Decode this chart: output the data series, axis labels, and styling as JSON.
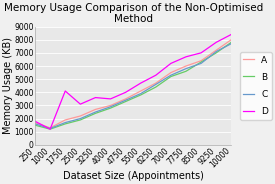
{
  "title": "Memory Usage Comparison of the Non-Optimised\nMethod",
  "xlabel": "Dataset Size (Appointments)",
  "ylabel": "Memory Usage (KB)",
  "xlim": [
    250,
    10000
  ],
  "ylim": [
    0,
    9000
  ],
  "yticks": [
    0,
    1000,
    2000,
    3000,
    4000,
    5000,
    6000,
    7000,
    8000,
    9000
  ],
  "xticks": [
    250,
    1000,
    1750,
    2500,
    3250,
    4000,
    4750,
    5500,
    6250,
    7000,
    7750,
    8500,
    9250,
    10000
  ],
  "series": {
    "A": {
      "color": "#FF9999",
      "label": "A"
    },
    "B": {
      "color": "#66CC66",
      "label": "B"
    },
    "C": {
      "color": "#6699CC",
      "label": "C"
    },
    "D": {
      "color": "#FF00FF",
      "label": "D"
    }
  },
  "x": [
    250,
    1000,
    1750,
    2500,
    3250,
    4000,
    4750,
    5500,
    6250,
    7000,
    7750,
    8500,
    9250,
    10000
  ],
  "A": [
    1700,
    1300,
    1900,
    2200,
    2700,
    3000,
    3500,
    4100,
    4700,
    5500,
    6000,
    6400,
    7200,
    8000
  ],
  "B": [
    1500,
    1200,
    1600,
    1900,
    2400,
    2800,
    3300,
    3800,
    4400,
    5200,
    5600,
    6300,
    7000,
    7800
  ],
  "C": [
    1600,
    1250,
    1700,
    2000,
    2500,
    2900,
    3400,
    3900,
    4600,
    5300,
    5800,
    6200,
    7100,
    7700
  ],
  "D": [
    1800,
    1200,
    4100,
    3100,
    3600,
    3500,
    4000,
    4700,
    5300,
    6200,
    6700,
    7000,
    7800,
    8400
  ],
  "fig_bg": "#F0F0F0",
  "ax_bg": "#E8E8E8",
  "title_fontsize": 7.5,
  "axis_label_fontsize": 7,
  "tick_fontsize": 5.5,
  "legend_fontsize": 6.5,
  "linewidth": 0.9
}
